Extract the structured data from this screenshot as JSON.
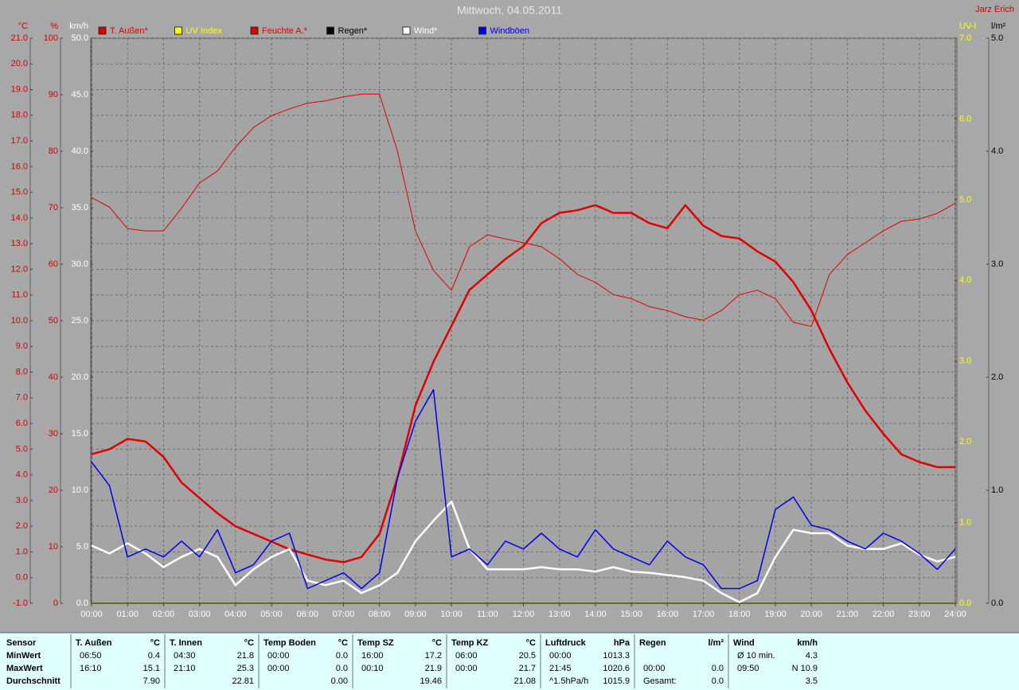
{
  "chart_data": {
    "type": "line",
    "title": "Mittwoch, 04.05.2011",
    "author": "Jarz Erich",
    "xlim": [
      0,
      24
    ],
    "xticks": [
      {
        "value": 0,
        "label": "00:00"
      },
      {
        "value": 1,
        "label": "01:00"
      },
      {
        "value": 2,
        "label": "02:00"
      },
      {
        "value": 3,
        "label": "03:00"
      },
      {
        "value": 4,
        "label": "04:00"
      },
      {
        "value": 5,
        "label": "05:00"
      },
      {
        "value": 6,
        "label": "06:00"
      },
      {
        "value": 7,
        "label": "07:00"
      },
      {
        "value": 8,
        "label": "08:00"
      },
      {
        "value": 9,
        "label": "09:00"
      },
      {
        "value": 10,
        "label": "10:00"
      },
      {
        "value": 11,
        "label": "11:00"
      },
      {
        "value": 12,
        "label": "12:00"
      },
      {
        "value": 13,
        "label": "13:00"
      },
      {
        "value": 14,
        "label": "14:00"
      },
      {
        "value": 15,
        "label": "15:00"
      },
      {
        "value": 16,
        "label": "16:00"
      },
      {
        "value": 17,
        "label": "17:00"
      },
      {
        "value": 18,
        "label": "18:00"
      },
      {
        "value": 19,
        "label": "19:00"
      },
      {
        "value": 20,
        "label": "20:00"
      },
      {
        "value": 21,
        "label": "21:00"
      },
      {
        "value": 22,
        "label": "22:00"
      },
      {
        "value": 23,
        "label": "23:00"
      },
      {
        "value": 24,
        "label": "24:00"
      }
    ],
    "grid": true,
    "axes": {
      "temp": {
        "unit": "°C",
        "color": "#d00000",
        "lim": [
          -1,
          21
        ],
        "ticks": [
          {
            "value": -1,
            "label": "-1.0"
          },
          {
            "value": 0,
            "label": "0.0"
          },
          {
            "value": 1,
            "label": "1.0"
          },
          {
            "value": 2,
            "label": "2.0"
          },
          {
            "value": 3,
            "label": "3.0"
          },
          {
            "value": 4,
            "label": "4.0"
          },
          {
            "value": 5,
            "label": "5.0"
          },
          {
            "value": 6,
            "label": "6.0"
          },
          {
            "value": 7,
            "label": "7.0"
          },
          {
            "value": 8,
            "label": "8.0"
          },
          {
            "value": 9,
            "label": "9.0"
          },
          {
            "value": 10,
            "label": "10.0"
          },
          {
            "value": 11,
            "label": "11.0"
          },
          {
            "value": 12,
            "label": "12.0"
          },
          {
            "value": 13,
            "label": "13.0"
          },
          {
            "value": 14,
            "label": "14.0"
          },
          {
            "value": 15,
            "label": "15.0"
          },
          {
            "value": 16,
            "label": "16.0"
          },
          {
            "value": 17,
            "label": "17.0"
          },
          {
            "value": 18,
            "label": "18.0"
          },
          {
            "value": 19,
            "label": "19.0"
          },
          {
            "value": 20,
            "label": "20.0"
          },
          {
            "value": 21,
            "label": "21.0"
          }
        ]
      },
      "hum": {
        "unit": "%",
        "color": "#d00000",
        "lim": [
          0,
          100
        ],
        "ticks": [
          0,
          10,
          20,
          30,
          40,
          50,
          60,
          70,
          80,
          90,
          100
        ]
      },
      "wind": {
        "unit": "km/h",
        "color": "#ffffff",
        "lim": [
          0,
          50
        ],
        "ticks": [
          {
            "value": 0,
            "label": "0.0"
          },
          {
            "value": 5,
            "label": "5.0"
          },
          {
            "value": 10,
            "label": "10.0"
          },
          {
            "value": 15,
            "label": "15.0"
          },
          {
            "value": 20,
            "label": "20.0"
          },
          {
            "value": 25,
            "label": "25.0"
          },
          {
            "value": 30,
            "label": "30.0"
          },
          {
            "value": 35,
            "label": "35.0"
          },
          {
            "value": 40,
            "label": "40.0"
          },
          {
            "value": 45,
            "label": "45.0"
          },
          {
            "value": 50,
            "label": "50.0"
          }
        ]
      },
      "uv": {
        "unit": "UV-I",
        "color": "#ffff00",
        "lim": [
          0,
          7
        ],
        "ticks": [
          {
            "value": 0,
            "label": "0.0"
          },
          {
            "value": 1,
            "label": "1.0"
          },
          {
            "value": 2,
            "label": "2.0"
          },
          {
            "value": 3,
            "label": "3.0"
          },
          {
            "value": 4,
            "label": "4.0"
          },
          {
            "value": 5,
            "label": "5.0"
          },
          {
            "value": 6,
            "label": "6.0"
          },
          {
            "value": 7,
            "label": "7.0"
          }
        ]
      },
      "rain": {
        "unit": "l/m²",
        "color": "#000000",
        "lim": [
          0,
          5
        ],
        "ticks": [
          {
            "value": 0,
            "label": "0.0"
          },
          {
            "value": 1,
            "label": "1.0"
          },
          {
            "value": 2,
            "label": "2.0"
          },
          {
            "value": 3,
            "label": "3.0"
          },
          {
            "value": 4,
            "label": "4.0"
          },
          {
            "value": 5,
            "label": "5.0"
          }
        ]
      }
    },
    "x": [
      0,
      0.5,
      1,
      1.5,
      2,
      2.5,
      3,
      3.5,
      4,
      4.5,
      5,
      5.5,
      6,
      6.5,
      7,
      7.5,
      8,
      8.5,
      9,
      9.5,
      10,
      10.5,
      11,
      11.5,
      12,
      12.5,
      13,
      13.5,
      14,
      14.5,
      15,
      15.5,
      16,
      16.5,
      17,
      17.5,
      18,
      18.5,
      19,
      19.5,
      20,
      20.5,
      21,
      21.5,
      22,
      22.5,
      23,
      23.5,
      24
    ],
    "series": [
      {
        "name": "T. Außen*",
        "color": "#e00000",
        "axis": "temp",
        "width": 2.5,
        "values": [
          4.8,
          5.0,
          5.4,
          5.3,
          4.7,
          3.7,
          3.1,
          2.5,
          2.0,
          1.7,
          1.4,
          1.1,
          0.9,
          0.7,
          0.6,
          0.8,
          1.7,
          3.9,
          6.7,
          8.4,
          9.8,
          11.2,
          11.8,
          12.4,
          12.9,
          13.8,
          14.2,
          14.3,
          14.5,
          14.2,
          14.2,
          13.8,
          13.6,
          14.5,
          13.7,
          13.3,
          13.2,
          12.7,
          12.3,
          11.5,
          10.4,
          8.9,
          7.6,
          6.5,
          5.6,
          4.8,
          4.5,
          4.3,
          4.3
        ]
      },
      {
        "name": "UV Index",
        "color": "#ffff00",
        "axis": "uv",
        "width": 1.5,
        "values": [
          0,
          0,
          0,
          0,
          0,
          0,
          0,
          0,
          0,
          0,
          0,
          0,
          0,
          0,
          0,
          0,
          0,
          0,
          0,
          0,
          0,
          0,
          0,
          0,
          0,
          0,
          0,
          0,
          0,
          0,
          0,
          0,
          0,
          0,
          0,
          0,
          0,
          0,
          0,
          0,
          0,
          0,
          0,
          0,
          0,
          0,
          0,
          0,
          0
        ]
      },
      {
        "name": "Feuchte A.*",
        "color": "#e00000",
        "axis": "hum",
        "width": 1,
        "values": [
          71.8,
          70.1,
          66.3,
          65.9,
          65.9,
          69.9,
          74.4,
          76.5,
          80.7,
          84.2,
          86.3,
          87.5,
          88.5,
          88.9,
          89.6,
          90.1,
          90.1,
          80.0,
          65.9,
          58.9,
          55.4,
          63.1,
          65.2,
          64.5,
          63.8,
          63.1,
          61.0,
          58.2,
          56.8,
          54.6,
          53.9,
          52.5,
          51.8,
          50.7,
          50.1,
          51.8,
          54.6,
          55.4,
          53.9,
          49.7,
          49.0,
          58.2,
          61.7,
          63.8,
          65.9,
          67.6,
          68.0,
          69.0,
          70.8
        ]
      },
      {
        "name": "Regen*",
        "color": "#000000",
        "axis": "rain",
        "width": 1,
        "values": [
          0,
          0,
          0,
          0,
          0,
          0,
          0,
          0,
          0,
          0,
          0,
          0,
          0,
          0,
          0,
          0,
          0,
          0,
          0,
          0,
          0,
          0,
          0,
          0,
          0,
          0,
          0,
          0,
          0,
          0,
          0,
          0,
          0,
          0,
          0,
          0,
          0,
          0,
          0,
          0,
          0,
          0,
          0,
          0,
          0,
          0,
          0,
          0,
          0
        ]
      },
      {
        "name": "Wind*",
        "color": "#ffffff",
        "axis": "wind",
        "width": 2.5,
        "values": [
          5.1,
          4.4,
          5.3,
          4.4,
          3.2,
          4.1,
          4.8,
          4.1,
          1.6,
          3.0,
          4.1,
          4.8,
          2.0,
          1.6,
          2.0,
          0.9,
          1.6,
          2.7,
          5.5,
          7.3,
          9.0,
          4.8,
          3.0,
          3.0,
          3.0,
          3.2,
          3.0,
          3.0,
          2.8,
          3.2,
          2.8,
          2.7,
          2.5,
          2.3,
          2.0,
          0.9,
          0.1,
          0.9,
          4.1,
          6.5,
          6.2,
          6.2,
          5.1,
          4.8,
          4.8,
          5.3,
          4.3,
          3.7,
          4.1
        ]
      },
      {
        "name": "Windböen",
        "color": "#0000ee",
        "axis": "wind",
        "width": 1.5,
        "values": [
          12.5,
          10.4,
          4.1,
          4.8,
          4.1,
          5.5,
          4.1,
          6.5,
          2.7,
          3.4,
          5.5,
          6.2,
          1.3,
          2.0,
          2.7,
          1.3,
          2.7,
          11.1,
          16.1,
          18.9,
          4.1,
          4.8,
          3.4,
          5.5,
          4.8,
          6.2,
          4.8,
          4.1,
          6.5,
          4.8,
          4.1,
          3.4,
          5.5,
          4.1,
          3.4,
          1.3,
          1.3,
          2.0,
          8.3,
          9.4,
          6.9,
          6.5,
          5.5,
          4.8,
          6.2,
          5.5,
          4.4,
          3.0,
          4.8
        ]
      }
    ]
  },
  "table": {
    "row_labels": [
      "Sensor",
      "MinWert",
      "MaxWert",
      "Durchschnitt"
    ],
    "columns": [
      {
        "title": "T. Außen",
        "unit": "°C",
        "rows": [
          [
            "06:50",
            "0.4"
          ],
          [
            "16:10",
            "15.1"
          ],
          [
            "7.90"
          ]
        ]
      },
      {
        "title": "T. Innen",
        "unit": "°C",
        "rows": [
          [
            "04:30",
            "21.8"
          ],
          [
            "21:10",
            "25.3"
          ],
          [
            "22.81"
          ]
        ]
      },
      {
        "title": "Temp Boden",
        "unit": "°C",
        "rows": [
          [
            "00:00",
            "0.0"
          ],
          [
            "00:00",
            "0.0"
          ],
          [
            "0.00"
          ]
        ]
      },
      {
        "title": "Temp SZ",
        "unit": "°C",
        "rows": [
          [
            "16:00",
            "17.2"
          ],
          [
            "00:10",
            "21.9"
          ],
          [
            "19.46"
          ]
        ]
      },
      {
        "title": "Temp KZ",
        "unit": "°C",
        "rows": [
          [
            "06:00",
            "20.5"
          ],
          [
            "00:00",
            "21.7"
          ],
          [
            "21.08"
          ]
        ]
      },
      {
        "title": "Luftdruck",
        "unit": "hPa",
        "rows": [
          [
            "00:00",
            "1013.3"
          ],
          [
            "21:45",
            "1020.6"
          ],
          [
            "^1.5hPa/h",
            "1015.9"
          ]
        ]
      },
      {
        "title": "Regen",
        "unit": "l/m²",
        "rows": [
          [],
          [
            "00:00",
            "0.0"
          ],
          [
            "Gesamt:",
            "0.0"
          ]
        ]
      },
      {
        "title": "Wind",
        "unit": "km/h",
        "rows": [
          [
            "Ø 10 min.",
            "4.3"
          ],
          [
            "09:50",
            "N 10.9"
          ],
          [
            "3.5"
          ]
        ]
      }
    ]
  }
}
